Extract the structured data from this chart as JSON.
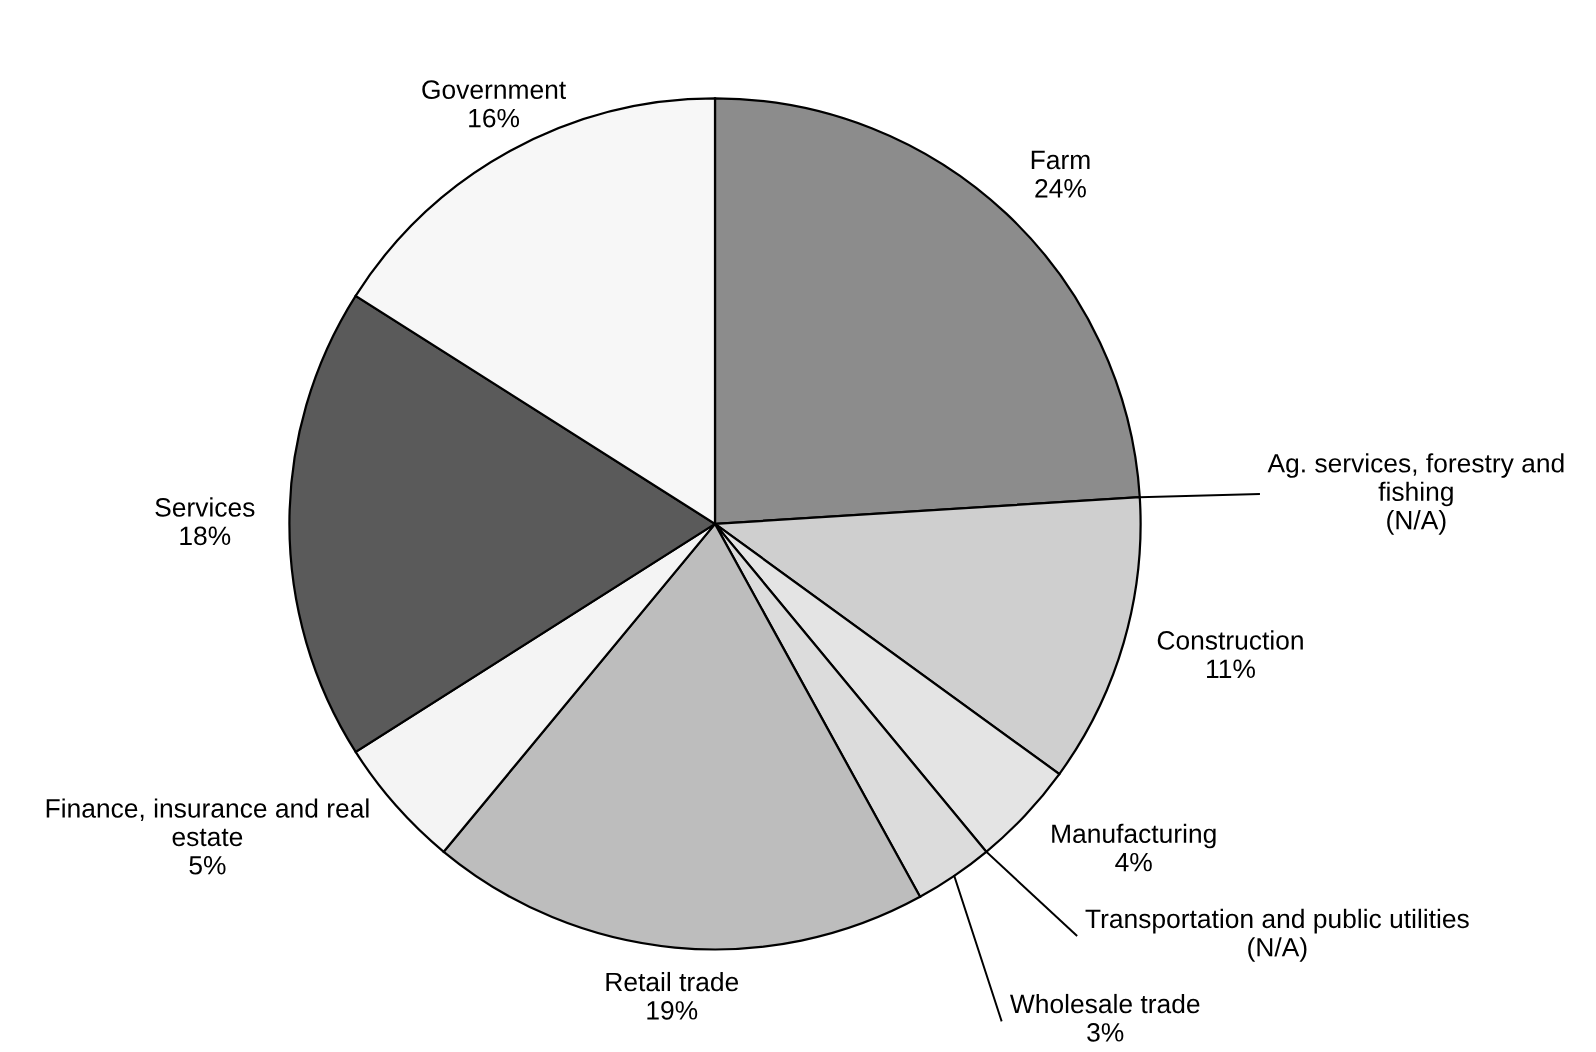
{
  "chart_data": {
    "type": "pie",
    "categories": [
      "Farm",
      "Ag. services, forestry and fishing",
      "Construction",
      "Manufacturing",
      "Transportation and public utilities",
      "Wholesale trade",
      "Retail trade",
      "Finance, insurance and real estate",
      "Services",
      "Government"
    ],
    "values": [
      24,
      null,
      11,
      4,
      null,
      3,
      19,
      5,
      18,
      16
    ],
    "value_labels": [
      "24%",
      "(N/A)",
      "11%",
      "4%",
      "(N/A)",
      "3%",
      "19%",
      "5%",
      "18%",
      "16%"
    ],
    "colors": [
      "#8c8c8c",
      "#8c8c8c",
      "#cfcfcf",
      "#e4e4e4",
      "#e4e4e4",
      "#dcdcdc",
      "#bdbdbd",
      "#f4f4f4",
      "#5a5a5a",
      "#f7f7f7"
    ]
  }
}
